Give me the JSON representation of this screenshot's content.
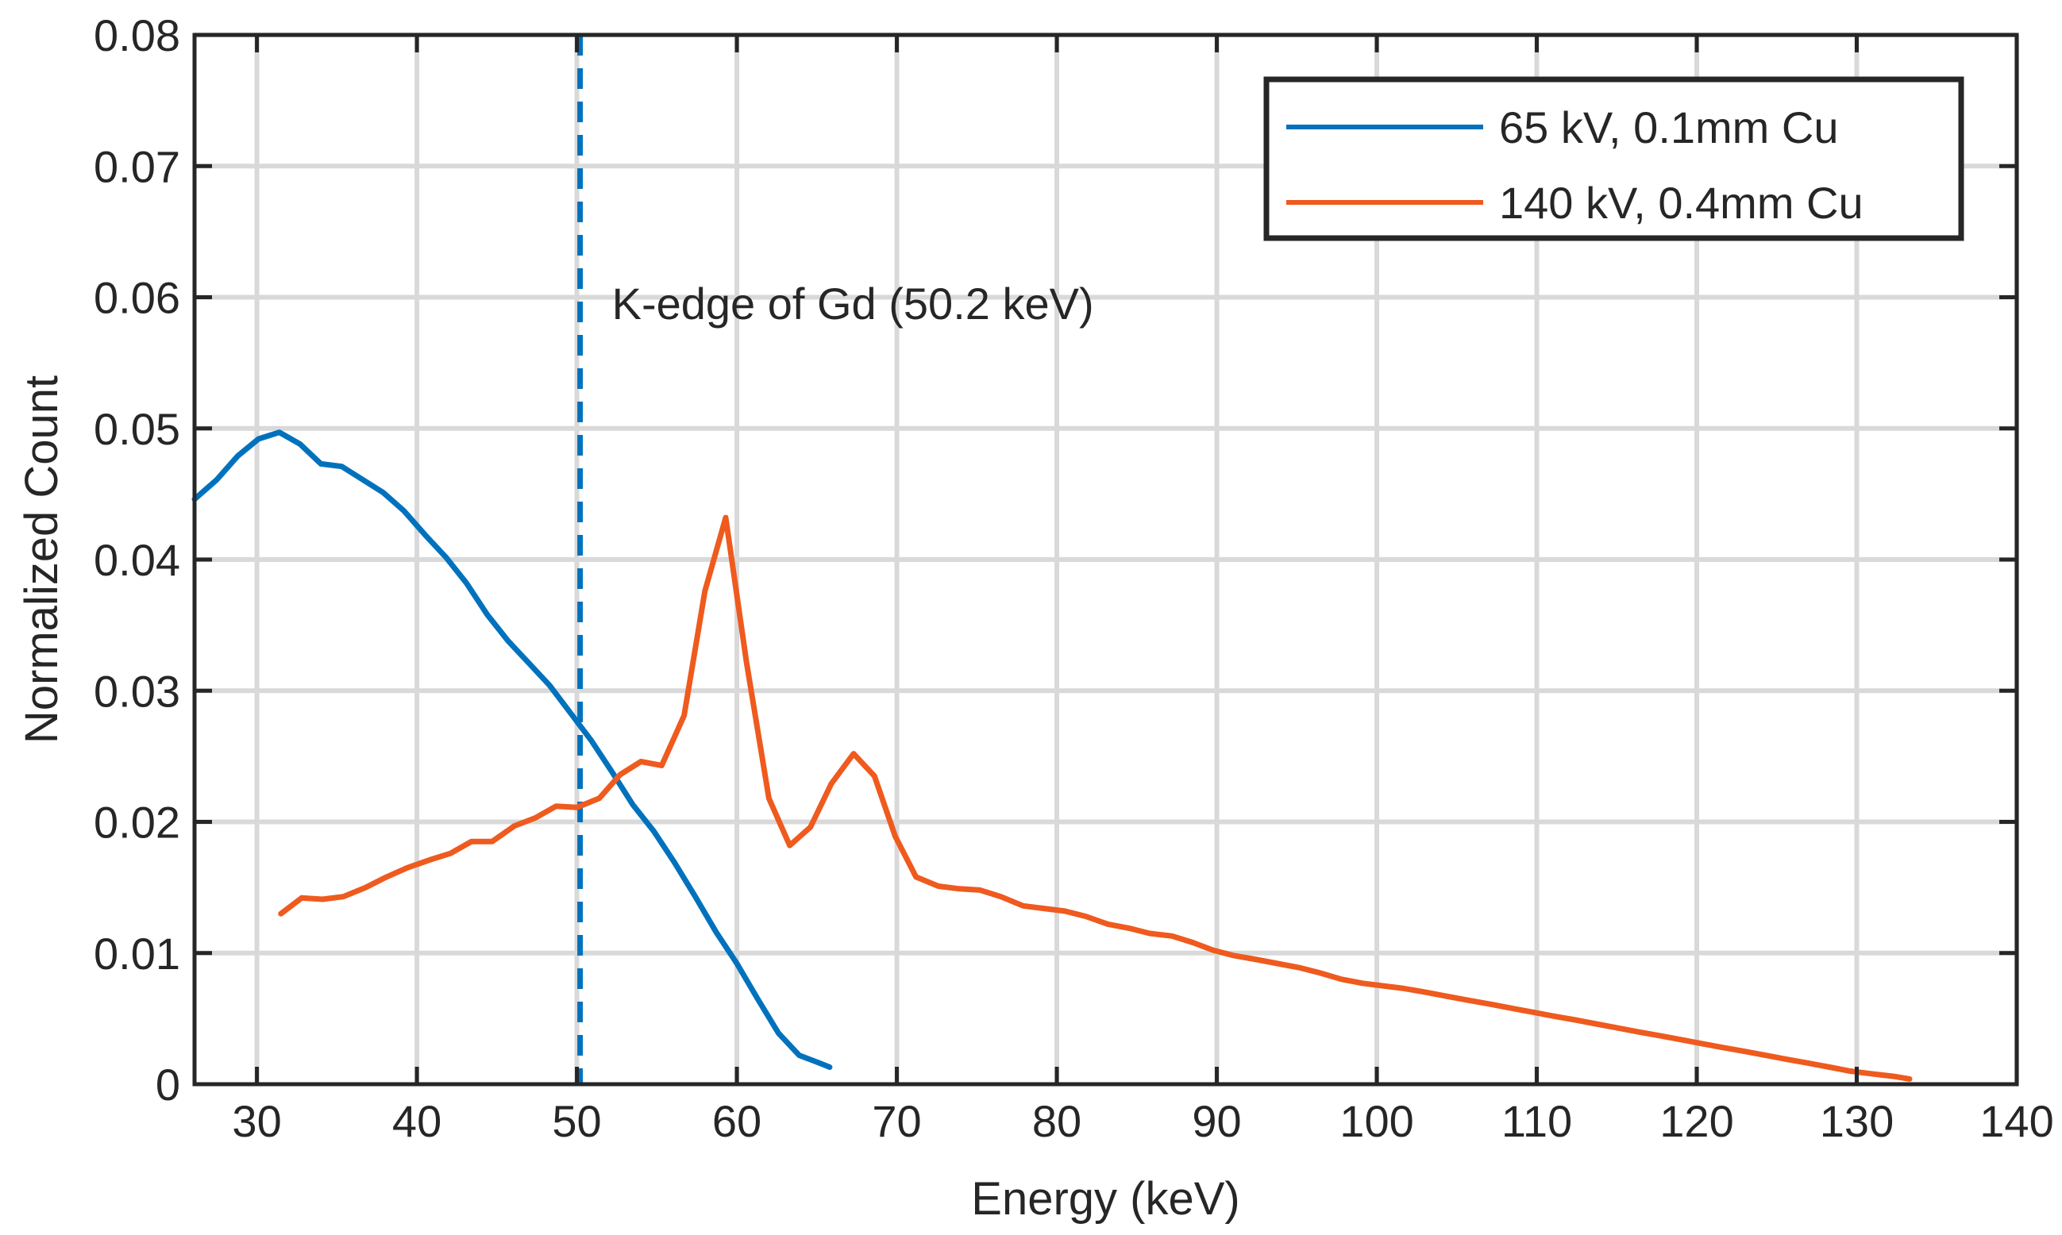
{
  "chart_data": {
    "type": "line",
    "xlabel": "Energy (keV)",
    "ylabel": "Normalized Count",
    "xlim": [
      26.1,
      140
    ],
    "ylim": [
      0,
      0.08
    ],
    "grid": true,
    "legend_position": "top-right",
    "x_ticks": [
      30,
      40,
      50,
      60,
      70,
      80,
      90,
      100,
      110,
      120,
      130,
      140
    ],
    "x_tick_labels": [
      "30",
      "40",
      "50",
      "60",
      "70",
      "80",
      "90",
      "100",
      "110",
      "120",
      "130",
      "140"
    ],
    "y_ticks": [
      0,
      0.01,
      0.02,
      0.03,
      0.04,
      0.05,
      0.06,
      0.07,
      0.08
    ],
    "y_tick_labels": [
      "0",
      "0.01",
      "0.02",
      "0.03",
      "0.04",
      "0.05",
      "0.06",
      "0.07",
      "0.08"
    ],
    "annotation": {
      "text": "K-edge of Gd (50.2 keV)",
      "x": 50.2,
      "color": "#0072BD"
    },
    "series": [
      {
        "name": "65 kV, 0.1mm Cu",
        "color": "#0072BD",
        "x": [
          26.1,
          27.5,
          28.8,
          30.1,
          31.4,
          32.7,
          34.0,
          35.3,
          36.6,
          37.9,
          39.2,
          40.5,
          41.8,
          43.1,
          44.4,
          45.7,
          47.0,
          48.3,
          49.6,
          50.9,
          52.2,
          53.5,
          54.8,
          56.1,
          57.4,
          58.7,
          60.0,
          61.3,
          62.6,
          63.9,
          65.2,
          65.8
        ],
        "y": [
          0.0446,
          0.0461,
          0.0479,
          0.0492,
          0.0497,
          0.0488,
          0.0473,
          0.0471,
          0.0461,
          0.0451,
          0.0437,
          0.0419,
          0.0402,
          0.0382,
          0.0358,
          0.0338,
          0.0321,
          0.0304,
          0.0283,
          0.0262,
          0.0238,
          0.0213,
          0.0193,
          0.0169,
          0.0143,
          0.0116,
          0.0092,
          0.0065,
          0.0039,
          0.0022,
          0.0016,
          0.0013
        ]
      },
      {
        "name": "140 kV, 0.4mm Cu",
        "color": "#EF5A1E",
        "x": [
          31.5,
          32.8,
          34.1,
          35.4,
          36.8,
          38.1,
          39.4,
          40.8,
          42.1,
          43.4,
          44.7,
          46.1,
          47.4,
          48.7,
          50.0,
          51.4,
          52.7,
          54.0,
          55.3,
          56.7,
          58.0,
          59.3,
          60.6,
          62.0,
          63.3,
          64.6,
          65.9,
          67.3,
          68.6,
          69.9,
          71.2,
          72.6,
          73.9,
          75.2,
          76.5,
          77.9,
          79.2,
          80.5,
          81.8,
          83.2,
          84.5,
          85.8,
          87.2,
          88.5,
          89.8,
          91.1,
          92.5,
          93.8,
          95.1,
          96.4,
          97.8,
          99.1,
          100.4,
          101.7,
          103.1,
          104.4,
          105.7,
          107.1,
          108.4,
          109.7,
          111.0,
          112.4,
          113.7,
          115.0,
          116.3,
          117.7,
          119.0,
          120.3,
          121.6,
          123.0,
          124.3,
          125.6,
          127.0,
          128.3,
          129.6,
          130.9,
          132.3,
          133.3
        ],
        "y": [
          0.013,
          0.0142,
          0.0141,
          0.0143,
          0.015,
          0.0158,
          0.0165,
          0.0171,
          0.0176,
          0.0185,
          0.0185,
          0.0197,
          0.0203,
          0.0212,
          0.0211,
          0.0218,
          0.0236,
          0.0246,
          0.0243,
          0.0281,
          0.0376,
          0.0432,
          0.0322,
          0.0218,
          0.0182,
          0.0196,
          0.0229,
          0.0252,
          0.0235,
          0.0189,
          0.0158,
          0.0151,
          0.0149,
          0.0148,
          0.0143,
          0.0136,
          0.0134,
          0.0132,
          0.0128,
          0.0122,
          0.0119,
          0.0115,
          0.0113,
          0.0108,
          0.0102,
          0.0098,
          0.0095,
          0.0092,
          0.0089,
          0.0085,
          0.008,
          0.0077,
          0.0075,
          0.0073,
          0.007,
          0.0067,
          0.0064,
          0.0061,
          0.0058,
          0.0055,
          0.0052,
          0.0049,
          0.0046,
          0.0043,
          0.004,
          0.0037,
          0.0034,
          0.0031,
          0.0028,
          0.0025,
          0.0022,
          0.0019,
          0.0016,
          0.0013,
          0.001,
          0.0008,
          0.0006,
          0.0004
        ]
      }
    ]
  }
}
